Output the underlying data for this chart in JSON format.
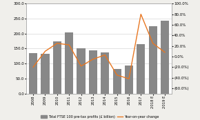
{
  "categories": [
    "2008",
    "2009",
    "2010",
    "2011",
    "2012",
    "2013",
    "2014",
    "2015",
    "2016",
    "2017",
    "2018 E",
    "2019 E"
  ],
  "bar_values": [
    135,
    132,
    173,
    205,
    150,
    145,
    138,
    82,
    93,
    165,
    225,
    243
  ],
  "yoy_change": [
    -0.2,
    0.1,
    0.25,
    0.22,
    -0.18,
    -0.05,
    0.03,
    -0.35,
    -0.42,
    0.8,
    0.25,
    0.08
  ],
  "bar_color": "#888888",
  "line_color": "#E87722",
  "left_ylim": [
    0,
    300
  ],
  "right_ylim": [
    -0.7,
    1.0
  ],
  "left_yticks": [
    0.0,
    50.0,
    100.0,
    150.0,
    200.0,
    250.0,
    300.0
  ],
  "right_yticks": [
    -0.6,
    -0.4,
    -0.2,
    0.0,
    0.2,
    0.4,
    0.6,
    0.8,
    1.0
  ],
  "legend_bar_label": "Total FTSE 100 pre-tax profits (£ billion)",
  "legend_line_label": "Year-on-year change",
  "background_color": "#f0efeb",
  "plot_bg_color": "#ffffff"
}
